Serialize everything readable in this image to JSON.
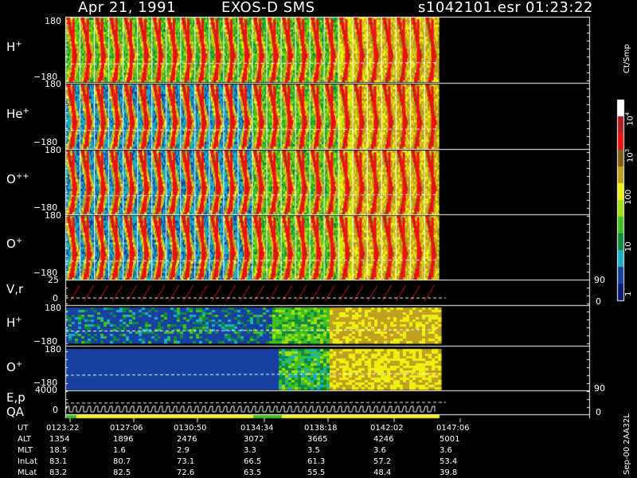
{
  "header": {
    "date": "Apr 21, 1991",
    "instrument": "EXOS-D SMS",
    "file": "s1042101.esr",
    "time": "01:23:22"
  },
  "panels": [
    {
      "label_main": "H",
      "label_sup": "+",
      "top_tick": "180",
      "bottom_tick": "−180"
    },
    {
      "label_main": "He",
      "label_sup": "+",
      "top_tick": "180",
      "bottom_tick": "−180"
    },
    {
      "label_main": "O",
      "label_sup": "++",
      "top_tick": "180",
      "bottom_tick": "−180"
    },
    {
      "label_main": "O",
      "label_sup": "+",
      "top_tick": "180",
      "bottom_tick": "−180"
    }
  ],
  "vr_panel": {
    "label": "V,r",
    "top_tick": "25",
    "zero_tick": "0",
    "right_top": "90",
    "right_zero": "0"
  },
  "sub_panels": [
    {
      "label_main": "H",
      "label_sup": "+",
      "top_tick": "180",
      "bottom_tick": "−180"
    },
    {
      "label_main": "O",
      "label_sup": "+",
      "top_tick": "180",
      "bottom_tick": "−180",
      "right_tick": "90"
    }
  ],
  "ep_panel": {
    "label1": "E,p",
    "label2": "QA",
    "top_tick": "4000",
    "zero_tick": "0",
    "right_zero": "0"
  },
  "colorbar": {
    "unit": "Ct/Smp",
    "labels": [
      {
        "base": "10",
        "exp": "4"
      },
      {
        "base": "10",
        "exp": "3"
      },
      {
        "base": "100",
        "exp": ""
      },
      {
        "base": "10",
        "exp": ""
      },
      {
        "base": "1",
        "exp": ""
      }
    ]
  },
  "footer_side": "Sep-00  2AA32L",
  "footer_rows": [
    {
      "name": "UT",
      "values": [
        "0123:22",
        "0127:06",
        "0130:50",
        "0134:34",
        "0138:18",
        "0142:02",
        "0147:06"
      ]
    },
    {
      "name": "ALT",
      "values": [
        "1354",
        "1896",
        "2476",
        "3072",
        "3665",
        "4246",
        "5001"
      ]
    },
    {
      "name": "MLT",
      "values": [
        "18.5",
        "1.6",
        "2.9",
        "3.3",
        "3.5",
        "3.6",
        "3.6"
      ]
    },
    {
      "name": "InLat",
      "values": [
        "83.1",
        "80.7",
        "73.1",
        "66.5",
        "61.3",
        "57.2",
        "53.4"
      ]
    },
    {
      "name": "MLat",
      "values": [
        "83.2",
        "82.5",
        "72.6",
        "63.5",
        "55.5",
        "48.4",
        "39.8"
      ]
    }
  ],
  "colors": {
    "scale": [
      "#0a1a6e",
      "#1840a0",
      "#18b0c0",
      "#108a40",
      "#40c020",
      "#a0e010",
      "#f0f010",
      "#c0a020",
      "#806018",
      "#f01010",
      "#b02020",
      "#ffffff"
    ]
  },
  "chart_data": {
    "type": "heatmap",
    "title": "Apr 21, 1991    EXOS-D SMS",
    "xlabel": "UT",
    "x_ticks": [
      "0123:22",
      "0127:06",
      "0130:50",
      "0134:34",
      "0138:18",
      "0142:02",
      "0147:06"
    ],
    "panels": [
      "H+",
      "He+",
      "O++",
      "O+",
      "V,r",
      "H+",
      "O+",
      "E,p QA"
    ],
    "colorbar_unit": "Ct/Smp",
    "colorbar_range": [
      1,
      10000
    ],
    "colorbar_scale": "log"
  }
}
